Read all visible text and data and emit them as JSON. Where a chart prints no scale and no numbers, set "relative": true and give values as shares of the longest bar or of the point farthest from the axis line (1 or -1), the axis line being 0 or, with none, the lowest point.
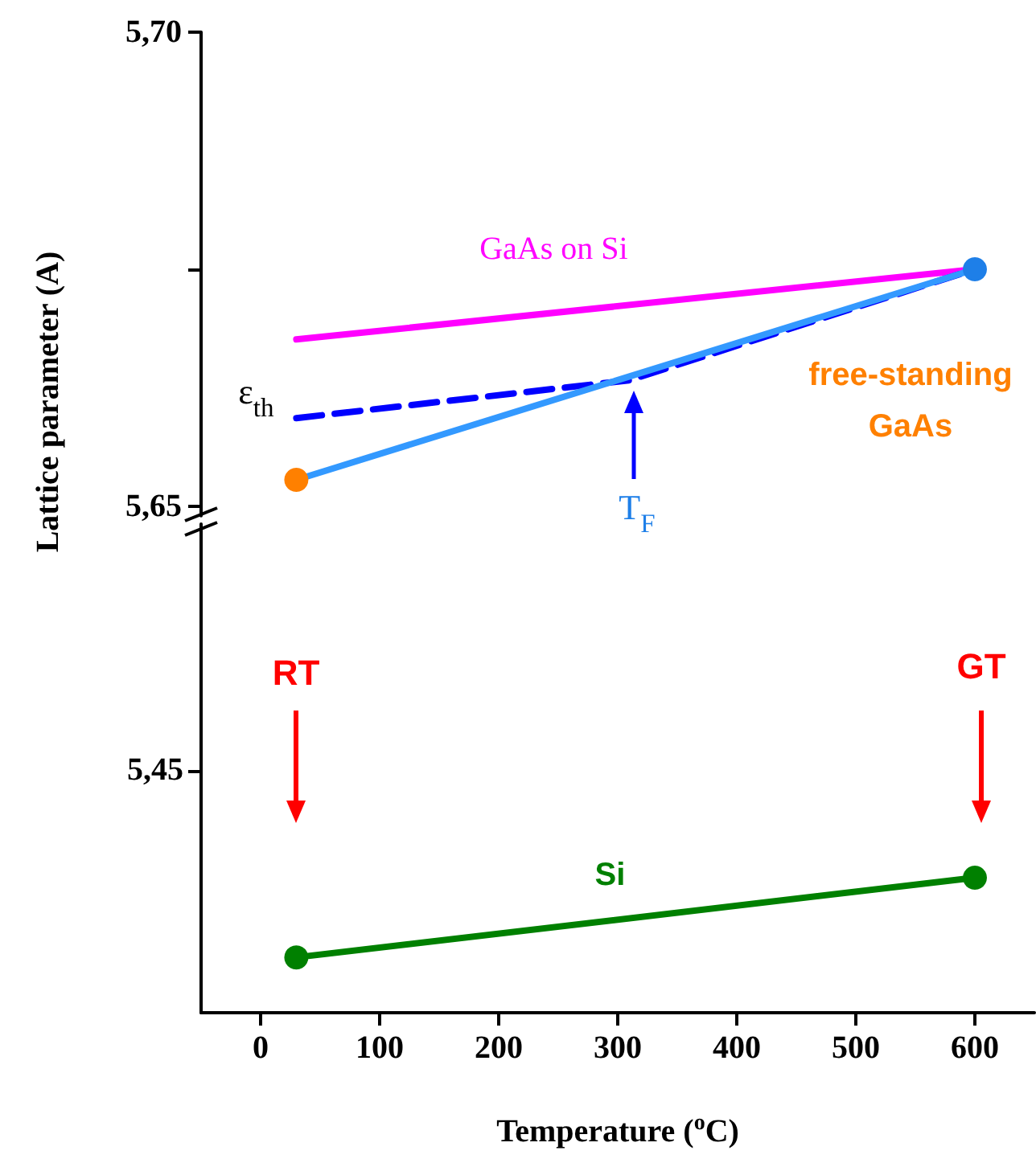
{
  "chart_data": [
    {
      "type": "line",
      "ylabel": "Lattice parameter (A)",
      "xlim": [
        -50,
        650
      ],
      "ylim": [
        5.649,
        5.7
      ],
      "yticks": [
        {
          "value": 5.65,
          "label": "5,65"
        },
        {
          "value": 5.675,
          "label": null
        },
        {
          "value": 5.7,
          "label": "5,70"
        }
      ],
      "tick_labels": "y",
      "marker": "circle",
      "annotations": [
        "T$_{F}$"
      ],
      "series": [
        {
          "name": "GaAs on Si",
          "color": "#ff00ff",
          "marker": "none",
          "x": [
            30,
            600
          ],
          "values": [
            5.6676,
            5.675
          ]
        },
        {
          "name": "ε$_{th}$",
          "color": "#0000ff",
          "marker": "none",
          "line_style": "dashed",
          "x": [
            30,
            310,
            600
          ],
          "values": [
            5.6593,
            5.6633,
            5.675
          ]
        },
        {
          "name": "free-standing GaAs",
          "color": "#3399ff",
          "colors": [
            "#ff8000",
            "#1e7fe8"
          ],
          "x": [
            30,
            600
          ],
          "values": [
            5.6528,
            5.675
          ]
        }
      ]
    },
    {
      "type": "line",
      "xlabel": "Temperature ($^{o}$C)",
      "xlim": [
        -50,
        650
      ],
      "xticks": [
        0,
        100,
        200,
        300,
        400,
        500,
        600
      ],
      "relative": true,
      "marker": "circle",
      "annotations": [
        "5,45",
        "RT",
        "GT"
      ],
      "series": [
        {
          "name": "Si",
          "color": "#008000",
          "x": [
            30,
            600
          ],
          "values": [
            0.41,
            1
          ]
        }
      ]
    }
  ]
}
